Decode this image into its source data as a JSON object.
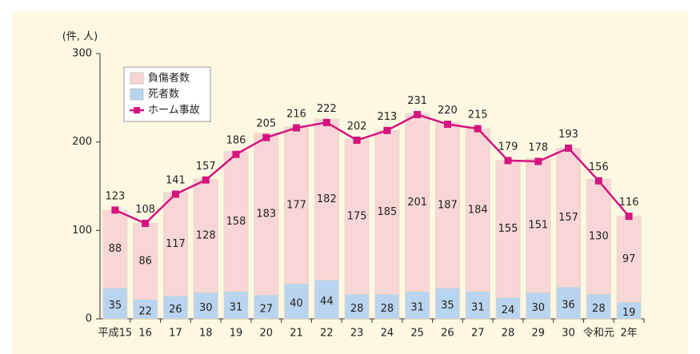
{
  "chart_data": {
    "type": "bar",
    "stacked": true,
    "y_label": "(件, 人)",
    "categories": [
      "平成15",
      "16",
      "17",
      "18",
      "19",
      "20",
      "21",
      "22",
      "23",
      "24",
      "25",
      "26",
      "27",
      "28",
      "29",
      "30",
      "令和元",
      "2年"
    ],
    "series": [
      {
        "name": "死者数",
        "type": "bar",
        "color": "#b9d4ee",
        "values": [
          35,
          22,
          26,
          30,
          31,
          27,
          40,
          44,
          28,
          28,
          31,
          35,
          31,
          24,
          30,
          36,
          28,
          19
        ]
      },
      {
        "name": "負傷者数",
        "type": "bar",
        "color": "#f9d6d6",
        "values": [
          88,
          86,
          117,
          128,
          158,
          183,
          177,
          182,
          175,
          185,
          201,
          187,
          184,
          155,
          151,
          157,
          130,
          97
        ]
      },
      {
        "name": "ホーム事故",
        "type": "line",
        "color": "#d4147f",
        "values": [
          123,
          108,
          141,
          157,
          186,
          205,
          216,
          222,
          202,
          213,
          231,
          220,
          215,
          179,
          178,
          193,
          156,
          116
        ]
      }
    ],
    "legend_order": [
      1,
      0,
      2
    ],
    "ylim": [
      0,
      300
    ],
    "yticks": [
      0,
      100,
      200,
      300
    ],
    "grid": false
  }
}
